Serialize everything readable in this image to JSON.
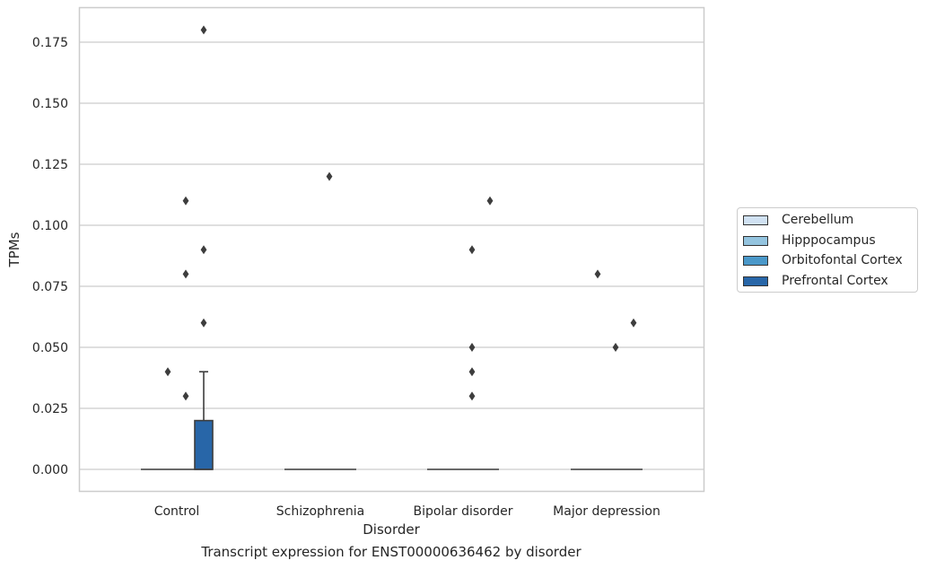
{
  "chart_data": {
    "type": "box",
    "title": "Transcript expression for ENST00000636462 by disorder",
    "xlabel": "Disorder",
    "ylabel": "TPMs",
    "ylim": [
      -0.009,
      0.189
    ],
    "yticks": [
      0.0,
      0.025,
      0.05,
      0.075,
      0.1,
      0.125,
      0.15,
      0.175
    ],
    "ytick_labels": [
      "0.000",
      "0.025",
      "0.050",
      "0.075",
      "0.100",
      "0.125",
      "0.150",
      "0.175"
    ],
    "grid": "horizontal",
    "legend_position": "right",
    "categories": [
      "Control",
      "Schizophrenia",
      "Bipolar disorder",
      "Major depression"
    ],
    "series": [
      {
        "name": "Cerebellum",
        "color": "#d0e1f2",
        "boxes": [
          {
            "q1": 0,
            "median": 0,
            "q3": 0,
            "whisker_low": 0,
            "whisker_high": 0,
            "outliers": []
          },
          {
            "q1": 0,
            "median": 0,
            "q3": 0,
            "whisker_low": 0,
            "whisker_high": 0,
            "outliers": []
          },
          {
            "q1": 0,
            "median": 0,
            "q3": 0,
            "whisker_low": 0,
            "whisker_high": 0,
            "outliers": []
          },
          {
            "q1": 0,
            "median": 0,
            "q3": 0,
            "whisker_low": 0,
            "whisker_high": 0,
            "outliers": []
          }
        ]
      },
      {
        "name": "Hipppocampus",
        "color": "#94c4df",
        "boxes": [
          {
            "q1": 0,
            "median": 0,
            "q3": 0,
            "whisker_low": 0,
            "whisker_high": 0,
            "outliers": [
              0.04
            ]
          },
          {
            "q1": 0,
            "median": 0,
            "q3": 0,
            "whisker_low": 0,
            "whisker_high": 0,
            "outliers": []
          },
          {
            "q1": 0,
            "median": 0,
            "q3": 0,
            "whisker_low": 0,
            "whisker_high": 0,
            "outliers": []
          },
          {
            "q1": 0,
            "median": 0,
            "q3": 0,
            "whisker_low": 0,
            "whisker_high": 0,
            "outliers": [
              0.08
            ]
          }
        ]
      },
      {
        "name": "Orbitofontal Cortex",
        "color": "#4a98c9",
        "boxes": [
          {
            "q1": 0,
            "median": 0,
            "q3": 0,
            "whisker_low": 0,
            "whisker_high": 0,
            "outliers": [
              0.08,
              0.03,
              0.11
            ]
          },
          {
            "q1": 0,
            "median": 0,
            "q3": 0,
            "whisker_low": 0,
            "whisker_high": 0,
            "outliers": [
              0.12
            ]
          },
          {
            "q1": 0,
            "median": 0,
            "q3": 0,
            "whisker_low": 0,
            "whisker_high": 0,
            "outliers": [
              0.05,
              0.03,
              0.09,
              0.04
            ]
          },
          {
            "q1": 0,
            "median": 0,
            "q3": 0,
            "whisker_low": 0,
            "whisker_high": 0,
            "outliers": [
              0.05
            ]
          }
        ]
      },
      {
        "name": "Prefrontal Cortex",
        "color": "#2866a8",
        "boxes": [
          {
            "q1": 0,
            "median": 0,
            "q3": 0.02,
            "whisker_low": 0,
            "whisker_high": 0.04,
            "outliers": [
              0.06,
              0.09,
              0.18
            ]
          },
          {
            "q1": 0,
            "median": 0,
            "q3": 0,
            "whisker_low": 0,
            "whisker_high": 0,
            "outliers": []
          },
          {
            "q1": 0,
            "median": 0,
            "q3": 0,
            "whisker_low": 0,
            "whisker_high": 0,
            "outliers": [
              0.11
            ]
          },
          {
            "q1": 0,
            "median": 0,
            "q3": 0,
            "whisker_low": 0,
            "whisker_high": 0,
            "outliers": [
              0.06
            ]
          }
        ]
      }
    ]
  }
}
